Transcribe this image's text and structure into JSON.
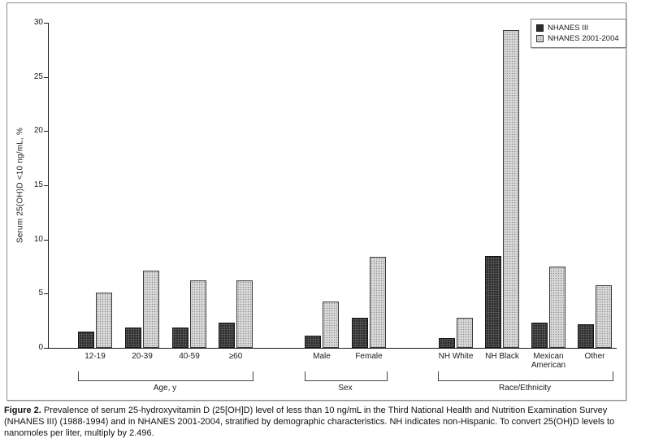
{
  "figure": {
    "caption_label": "Figure 2.",
    "caption_text": " Prevalence of serum 25-hydroxyvitamin D (25[OH]D) level of less than 10 ng/mL in the Third National Health and Nutrition Examination Survey (NHANES III) (1988-1994) and in NHANES 2001-2004, stratified by demographic characteristics. NH indicates non-Hispanic. To convert 25(OH)D levels to nanomoles per liter, multiply by 2.496."
  },
  "chart_data": {
    "type": "bar",
    "title": "",
    "xlabel": "",
    "ylabel": "Serum 25(OH)D <10 ng/mL, %",
    "ylim": [
      0,
      30
    ],
    "yticks": [
      0,
      5,
      10,
      15,
      20,
      25,
      30
    ],
    "grid": false,
    "legend_position": "top-right",
    "legend": [
      {
        "name": "NHANES III",
        "color": "#2d2d2d",
        "pattern": "crosshatch"
      },
      {
        "name": "NHANES 2001-2004",
        "color": "#d8d8d8",
        "pattern": "dotted"
      }
    ],
    "groups": [
      {
        "label": "Age, y",
        "categories": [
          "12-19",
          "20-39",
          "40-59",
          "≥60"
        ],
        "series": [
          {
            "name": "NHANES III",
            "values": [
              1.5,
              1.9,
              1.9,
              2.3
            ]
          },
          {
            "name": "NHANES 2001-2004",
            "values": [
              5.1,
              7.1,
              6.2,
              6.2
            ]
          }
        ]
      },
      {
        "label": "Sex",
        "categories": [
          "Male",
          "Female"
        ],
        "series": [
          {
            "name": "NHANES III",
            "values": [
              1.1,
              2.8
            ]
          },
          {
            "name": "NHANES 2001-2004",
            "values": [
              4.3,
              8.4
            ]
          }
        ]
      },
      {
        "label": "Race/Ethnicity",
        "categories": [
          "NH White",
          "NH Black",
          "Mexican American",
          "Other"
        ],
        "series": [
          {
            "name": "NHANES III",
            "values": [
              0.9,
              8.5,
              2.3,
              2.2
            ]
          },
          {
            "name": "NHANES 2001-2004",
            "values": [
              2.8,
              29.3,
              7.5,
              5.8
            ]
          }
        ]
      }
    ]
  }
}
